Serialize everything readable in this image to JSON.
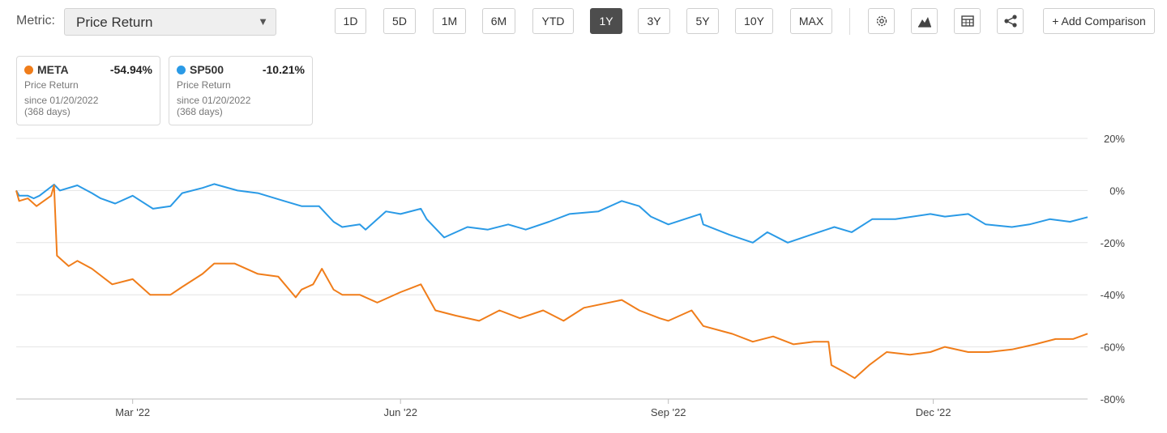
{
  "toolbar": {
    "metric_label": "Metric:",
    "metric_value": "Price Return",
    "ranges": [
      "1D",
      "5D",
      "1M",
      "6M",
      "YTD",
      "1Y",
      "3Y",
      "5Y",
      "10Y",
      "MAX"
    ],
    "active_range": "1Y",
    "icons": [
      "gear-icon",
      "mountain-chart-icon",
      "table-icon",
      "share-icon"
    ],
    "add_comparison": "+ Add Comparison"
  },
  "cards": [
    {
      "symbol": "META",
      "value": "-54.94%",
      "metric": "Price Return",
      "since": "since 01/20/2022",
      "days": "(368 days)",
      "color": "#f07d1a"
    },
    {
      "symbol": "SP500",
      "value": "-10.21%",
      "metric": "Price Return",
      "since": "since 01/20/2022",
      "days": "(368 days)",
      "color": "#2a9ae6"
    }
  ],
  "chart_data": {
    "type": "line",
    "x_range": [
      "2022-01-20",
      "2023-01-23"
    ],
    "x_ticks": [
      {
        "date": "2022-03-01",
        "label": "Mar '22"
      },
      {
        "date": "2022-06-01",
        "label": "Jun '22"
      },
      {
        "date": "2022-09-01",
        "label": "Sep '22"
      },
      {
        "date": "2022-12-01",
        "label": "Dec '22"
      }
    ],
    "ylim": [
      -80,
      20
    ],
    "y_ticks": [
      "20%",
      "0%",
      "-20%",
      "-40%",
      "-60%",
      "-80%"
    ],
    "y_tick_values": [
      20,
      0,
      -20,
      -40,
      -60,
      -80
    ],
    "grid": true,
    "series": [
      {
        "name": "SP500",
        "color": "#2a9ae6",
        "points": [
          [
            "2022-01-20",
            0
          ],
          [
            "2022-01-21",
            -2
          ],
          [
            "2022-01-24",
            -2
          ],
          [
            "2022-01-26",
            -3
          ],
          [
            "2022-01-28",
            -2
          ],
          [
            "2022-02-02",
            2.3
          ],
          [
            "2022-02-04",
            0
          ],
          [
            "2022-02-10",
            2
          ],
          [
            "2022-02-15",
            -1
          ],
          [
            "2022-02-18",
            -3
          ],
          [
            "2022-02-23",
            -5
          ],
          [
            "2022-03-01",
            -2
          ],
          [
            "2022-03-08",
            -7
          ],
          [
            "2022-03-14",
            -6
          ],
          [
            "2022-03-18",
            -1
          ],
          [
            "2022-03-25",
            1
          ],
          [
            "2022-03-29",
            2.5
          ],
          [
            "2022-04-06",
            0
          ],
          [
            "2022-04-13",
            -1
          ],
          [
            "2022-04-22",
            -4
          ],
          [
            "2022-04-28",
            -6
          ],
          [
            "2022-05-04",
            -6
          ],
          [
            "2022-05-09",
            -12
          ],
          [
            "2022-05-12",
            -14
          ],
          [
            "2022-05-18",
            -13
          ],
          [
            "2022-05-20",
            -15
          ],
          [
            "2022-05-27",
            -8
          ],
          [
            "2022-06-01",
            -9
          ],
          [
            "2022-06-08",
            -7
          ],
          [
            "2022-06-10",
            -11
          ],
          [
            "2022-06-16",
            -18
          ],
          [
            "2022-06-24",
            -14
          ],
          [
            "2022-07-01",
            -15
          ],
          [
            "2022-07-08",
            -13
          ],
          [
            "2022-07-14",
            -15
          ],
          [
            "2022-07-22",
            -12
          ],
          [
            "2022-07-29",
            -9
          ],
          [
            "2022-08-08",
            -8
          ],
          [
            "2022-08-16",
            -4
          ],
          [
            "2022-08-22",
            -6
          ],
          [
            "2022-08-26",
            -10
          ],
          [
            "2022-09-01",
            -13
          ],
          [
            "2022-09-12",
            -9
          ],
          [
            "2022-09-13",
            -13
          ],
          [
            "2022-09-22",
            -17
          ],
          [
            "2022-09-30",
            -20
          ],
          [
            "2022-10-05",
            -16
          ],
          [
            "2022-10-12",
            -20
          ],
          [
            "2022-10-20",
            -17
          ],
          [
            "2022-10-28",
            -14
          ],
          [
            "2022-11-03",
            -16
          ],
          [
            "2022-11-10",
            -11
          ],
          [
            "2022-11-18",
            -11
          ],
          [
            "2022-11-30",
            -9
          ],
          [
            "2022-12-05",
            -10
          ],
          [
            "2022-12-13",
            -9
          ],
          [
            "2022-12-19",
            -13
          ],
          [
            "2022-12-28",
            -14
          ],
          [
            "2023-01-03",
            -13
          ],
          [
            "2023-01-10",
            -11
          ],
          [
            "2023-01-17",
            -12
          ],
          [
            "2023-01-23",
            -10.21
          ]
        ]
      },
      {
        "name": "META",
        "color": "#f07d1a",
        "points": [
          [
            "2022-01-20",
            0
          ],
          [
            "2022-01-21",
            -4
          ],
          [
            "2022-01-24",
            -3
          ],
          [
            "2022-01-27",
            -6
          ],
          [
            "2022-02-01",
            -2
          ],
          [
            "2022-02-02",
            2
          ],
          [
            "2022-02-03",
            -25
          ],
          [
            "2022-02-07",
            -29
          ],
          [
            "2022-02-10",
            -27
          ],
          [
            "2022-02-15",
            -30
          ],
          [
            "2022-02-22",
            -36
          ],
          [
            "2022-03-01",
            -34
          ],
          [
            "2022-03-07",
            -40
          ],
          [
            "2022-03-14",
            -40
          ],
          [
            "2022-03-18",
            -37
          ],
          [
            "2022-03-25",
            -32
          ],
          [
            "2022-03-29",
            -28
          ],
          [
            "2022-04-05",
            -28
          ],
          [
            "2022-04-13",
            -32
          ],
          [
            "2022-04-20",
            -33
          ],
          [
            "2022-04-26",
            -41
          ],
          [
            "2022-04-28",
            -38
          ],
          [
            "2022-05-02",
            -36
          ],
          [
            "2022-05-05",
            -30
          ],
          [
            "2022-05-09",
            -38
          ],
          [
            "2022-05-12",
            -40
          ],
          [
            "2022-05-18",
            -40
          ],
          [
            "2022-05-24",
            -43
          ],
          [
            "2022-06-01",
            -39
          ],
          [
            "2022-06-08",
            -36
          ],
          [
            "2022-06-13",
            -46
          ],
          [
            "2022-06-20",
            -48
          ],
          [
            "2022-06-28",
            -50
          ],
          [
            "2022-07-05",
            -46
          ],
          [
            "2022-07-12",
            -49
          ],
          [
            "2022-07-20",
            -46
          ],
          [
            "2022-07-27",
            -50
          ],
          [
            "2022-08-03",
            -45
          ],
          [
            "2022-08-16",
            -42
          ],
          [
            "2022-08-22",
            -46
          ],
          [
            "2022-08-29",
            -49
          ],
          [
            "2022-09-01",
            -50
          ],
          [
            "2022-09-09",
            -46
          ],
          [
            "2022-09-13",
            -52
          ],
          [
            "2022-09-23",
            -55
          ],
          [
            "2022-09-30",
            -58
          ],
          [
            "2022-10-07",
            -56
          ],
          [
            "2022-10-14",
            -59
          ],
          [
            "2022-10-21",
            -58
          ],
          [
            "2022-10-26",
            -58
          ],
          [
            "2022-10-27",
            -67
          ],
          [
            "2022-11-01",
            -70
          ],
          [
            "2022-11-04",
            -72
          ],
          [
            "2022-11-09",
            -67
          ],
          [
            "2022-11-15",
            -62
          ],
          [
            "2022-11-23",
            -63
          ],
          [
            "2022-11-30",
            -62
          ],
          [
            "2022-12-05",
            -60
          ],
          [
            "2022-12-13",
            -62
          ],
          [
            "2022-12-20",
            -62
          ],
          [
            "2022-12-28",
            -61
          ],
          [
            "2023-01-05",
            -59
          ],
          [
            "2023-01-12",
            -57
          ],
          [
            "2023-01-18",
            -57
          ],
          [
            "2023-01-23",
            -54.94
          ]
        ]
      }
    ]
  }
}
